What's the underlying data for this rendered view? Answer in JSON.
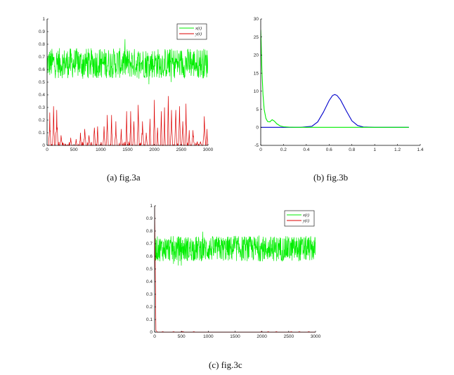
{
  "captions": {
    "a": "(a)  fig.3a",
    "b": "(b)  fig.3b",
    "c": "(c)  fig.3c"
  },
  "colors": {
    "x_series": "#00ee00",
    "y_series": "#dd0000",
    "density": "#0000cc",
    "axis": "#000000"
  },
  "chart_data": [
    {
      "id": "fig3a",
      "type": "line",
      "title": "",
      "xlabel": "",
      "ylabel": "",
      "xlim": [
        0,
        3000
      ],
      "ylim": [
        0,
        1
      ],
      "xticks": [
        0,
        500,
        1000,
        1500,
        2000,
        2500,
        3000
      ],
      "yticks": [
        0,
        0.1,
        0.2,
        0.3,
        0.4,
        0.5,
        0.6,
        0.7,
        0.8,
        0.9,
        1
      ],
      "grid": false,
      "legend": "top-right",
      "series": [
        {
          "name": "x(t)",
          "color": "#00ee00",
          "pattern": "noisy",
          "mean": 0.65,
          "amplitude": 0.12,
          "min": 0.4,
          "max": 0.92,
          "n": 600
        },
        {
          "name": "y(t)",
          "color": "#dd0000",
          "pattern": "bursts",
          "baseline": 0,
          "max": 0.39,
          "n": 600,
          "bursts": [
            [
              50,
              0.26
            ],
            [
              120,
              0.31
            ],
            [
              180,
              0.28
            ],
            [
              260,
              0.08
            ],
            [
              440,
              0.06
            ],
            [
              540,
              0.05
            ],
            [
              620,
              0.1
            ],
            [
              700,
              0.13
            ],
            [
              780,
              0.08
            ],
            [
              880,
              0.14
            ],
            [
              940,
              0.15
            ],
            [
              1060,
              0.15
            ],
            [
              1120,
              0.24
            ],
            [
              1200,
              0.24
            ],
            [
              1280,
              0.19
            ],
            [
              1380,
              0.13
            ],
            [
              1480,
              0.27
            ],
            [
              1560,
              0.27
            ],
            [
              1620,
              0.19
            ],
            [
              1700,
              0.32
            ],
            [
              1780,
              0.19
            ],
            [
              1850,
              0.1
            ],
            [
              1920,
              0.21
            ],
            [
              2000,
              0.36
            ],
            [
              2060,
              0.14
            ],
            [
              2130,
              0.27
            ],
            [
              2190,
              0.3
            ],
            [
              2260,
              0.39
            ],
            [
              2320,
              0.28
            ],
            [
              2400,
              0.28
            ],
            [
              2470,
              0.31
            ],
            [
              2530,
              0.19
            ],
            [
              2590,
              0.33
            ],
            [
              2650,
              0.12
            ],
            [
              2720,
              0.12
            ],
            [
              2800,
              0.03
            ],
            [
              2860,
              0.03
            ],
            [
              2930,
              0.23
            ],
            [
              2980,
              0.13
            ]
          ]
        }
      ]
    },
    {
      "id": "fig3b",
      "type": "line",
      "title": "",
      "xlabel": "",
      "ylabel": "",
      "xlim": [
        0,
        1.4
      ],
      "ylim": [
        -5,
        30
      ],
      "xticks": [
        0,
        0.2,
        0.4,
        0.6,
        0.8,
        1,
        1.2,
        1.4
      ],
      "xticklabels": [
        "0",
        "0.2",
        "0.4",
        "0.6",
        "0.8",
        "1",
        "1.2",
        "1.4"
      ],
      "yticks": [
        -5,
        0,
        5,
        10,
        15,
        20,
        25,
        30
      ],
      "grid": false,
      "legend": "none",
      "series": [
        {
          "color": "#0000cc",
          "x": [
            0,
            0.35,
            0.45,
            0.5,
            0.55,
            0.6,
            0.63,
            0.65,
            0.67,
            0.7,
            0.75,
            0.8,
            0.85,
            0.9,
            1.0,
            1.3
          ],
          "y": [
            0,
            0,
            0.3,
            1.5,
            4.2,
            7.4,
            8.8,
            9.1,
            8.8,
            7.6,
            4.6,
            1.8,
            0.5,
            0.1,
            0,
            0
          ]
        },
        {
          "color": "#00ee00",
          "x": [
            0,
            0.005,
            0.01,
            0.02,
            0.03,
            0.045,
            0.06,
            0.08,
            0.1,
            0.12,
            0.14,
            0.17,
            0.2,
            0.25,
            0.3,
            1.3
          ],
          "y": [
            27,
            22,
            16,
            9,
            5,
            2.5,
            1.6,
            1.5,
            2.1,
            1.7,
            1.0,
            0.4,
            0.15,
            0.05,
            0,
            0
          ]
        }
      ]
    },
    {
      "id": "fig3c",
      "type": "line",
      "title": "",
      "xlabel": "",
      "ylabel": "",
      "xlim": [
        0,
        3000
      ],
      "ylim": [
        0,
        1
      ],
      "xticks": [
        0,
        500,
        1000,
        1500,
        2000,
        2500,
        3000
      ],
      "yticks": [
        0,
        0.1,
        0.2,
        0.3,
        0.4,
        0.5,
        0.6,
        0.7,
        0.8,
        0.9,
        1
      ],
      "grid": false,
      "legend": "top-right",
      "series": [
        {
          "name": "x(t)",
          "color": "#00ee00",
          "pattern": "noisy",
          "mean": 0.66,
          "amplitude": 0.1,
          "min": 0.44,
          "max": 0.96,
          "n": 700
        },
        {
          "name": "y(t)",
          "color": "#dd0000",
          "pattern": "decay",
          "start": 1.0,
          "end": 0,
          "decay_until": 60,
          "n": 120
        }
      ]
    }
  ]
}
